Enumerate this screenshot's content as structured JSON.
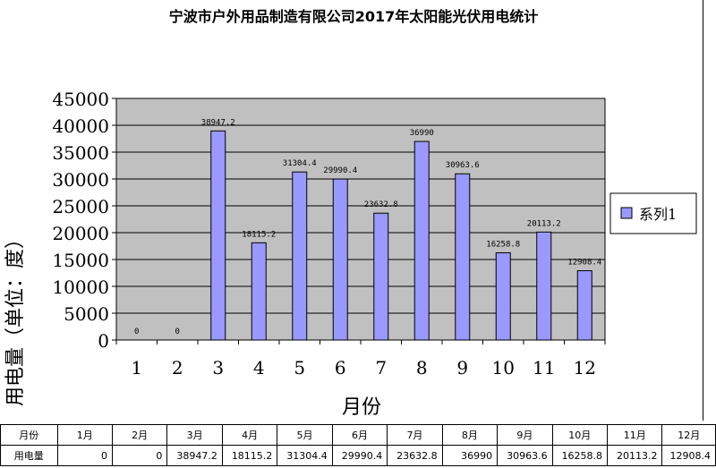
{
  "chart_data": {
    "type": "bar",
    "title": "宁波市户外用品制造有限公司2017年太阳能光伏用电统计",
    "xlabel": "月份",
    "ylabel": "用电量（单位：度）",
    "categories": [
      "1",
      "2",
      "3",
      "4",
      "5",
      "6",
      "7",
      "8",
      "9",
      "10",
      "11",
      "12"
    ],
    "series": [
      {
        "name": "系列1",
        "values": [
          0,
          0,
          38947.2,
          18115.2,
          31304.4,
          29990.4,
          23632.8,
          36990,
          30963.6,
          16258.8,
          20113.2,
          12908.4
        ],
        "labels": [
          "0",
          "0",
          "38947.2",
          "18115.2",
          "31304.4",
          "29990.4",
          "23632.8",
          "36990",
          "30963.6",
          "16258.8",
          "20113.2",
          "12908.4"
        ]
      }
    ],
    "ylim": [
      0,
      45000
    ],
    "yticks": [
      0,
      5000,
      10000,
      15000,
      20000,
      25000,
      30000,
      35000,
      40000,
      45000
    ],
    "grid": true,
    "legend_position": "right",
    "colors": {
      "bar_fill": "#9999FF",
      "bar_stroke": "#000000",
      "plot_bg": "#C0C0C0"
    }
  },
  "table": {
    "header_label": "月份",
    "row_label": "用电量",
    "months": [
      "1月",
      "2月",
      "3月",
      "4月",
      "5月",
      "6月",
      "7月",
      "8月",
      "9月",
      "10月",
      "11月",
      "12月"
    ],
    "values": [
      "0",
      "0",
      "38947.2",
      "18115.2",
      "31304.4",
      "29990.4",
      "23632.8",
      "36990",
      "30963.6",
      "16258.8",
      "20113.2",
      "12908.4"
    ]
  }
}
